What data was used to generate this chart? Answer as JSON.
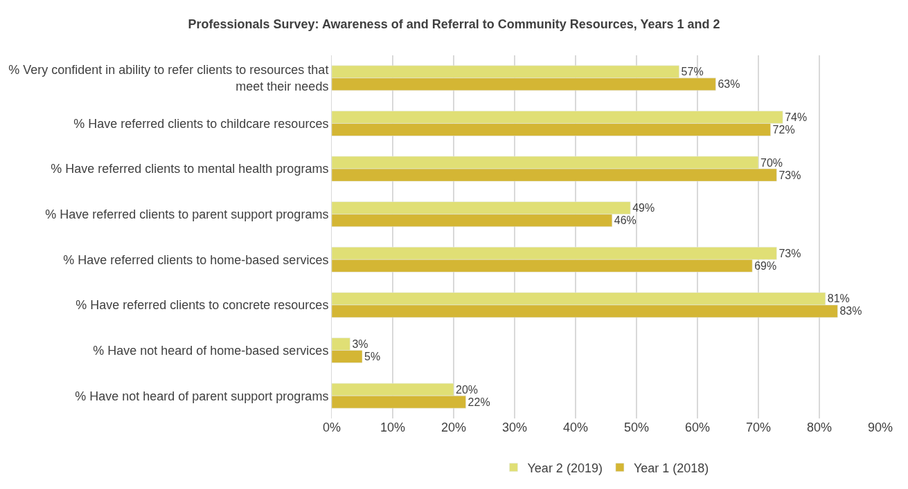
{
  "chart_data": {
    "type": "bar",
    "orientation": "horizontal",
    "title": "Professionals Survey: Awareness of and Referral to Community Resources, Years 1 and 2",
    "categories": [
      "% Very confident in ability to refer clients to resources that meet their needs",
      "% Have referred clients to childcare resources",
      "% Have referred clients to mental health programs",
      "% Have referred clients to parent support programs",
      "% Have referred clients to home-based services",
      "% Have referred clients to concrete resources",
      "% Have not heard of home-based services",
      "% Have not heard of parent support programs"
    ],
    "series": [
      {
        "name": "Year 2 (2019)",
        "color": "#e0df75",
        "values": [
          57,
          74,
          70,
          49,
          73,
          81,
          3,
          20
        ],
        "value_labels": [
          "57%",
          "74%",
          "70%",
          "49%",
          "73%",
          "81%",
          "3%",
          "20%"
        ]
      },
      {
        "name": "Year 1 (2018)",
        "color": "#d4b634",
        "values": [
          63,
          72,
          73,
          46,
          69,
          83,
          5,
          22
        ],
        "value_labels": [
          "63%",
          "72%",
          "73%",
          "46%",
          "69%",
          "83%",
          "5%",
          "22%"
        ]
      }
    ],
    "xlim": [
      0,
      90
    ],
    "xticks": [
      {
        "value": 0,
        "label": "0%"
      },
      {
        "value": 10,
        "label": "10%"
      },
      {
        "value": 20,
        "label": "20%"
      },
      {
        "value": 30,
        "label": "30%"
      },
      {
        "value": 40,
        "label": "40%"
      },
      {
        "value": 50,
        "label": "50%"
      },
      {
        "value": 60,
        "label": "60%"
      },
      {
        "value": 70,
        "label": "70%"
      },
      {
        "value": 80,
        "label": "80%"
      },
      {
        "value": 90,
        "label": "90%"
      }
    ],
    "grid": "x",
    "legend": "bottom"
  }
}
